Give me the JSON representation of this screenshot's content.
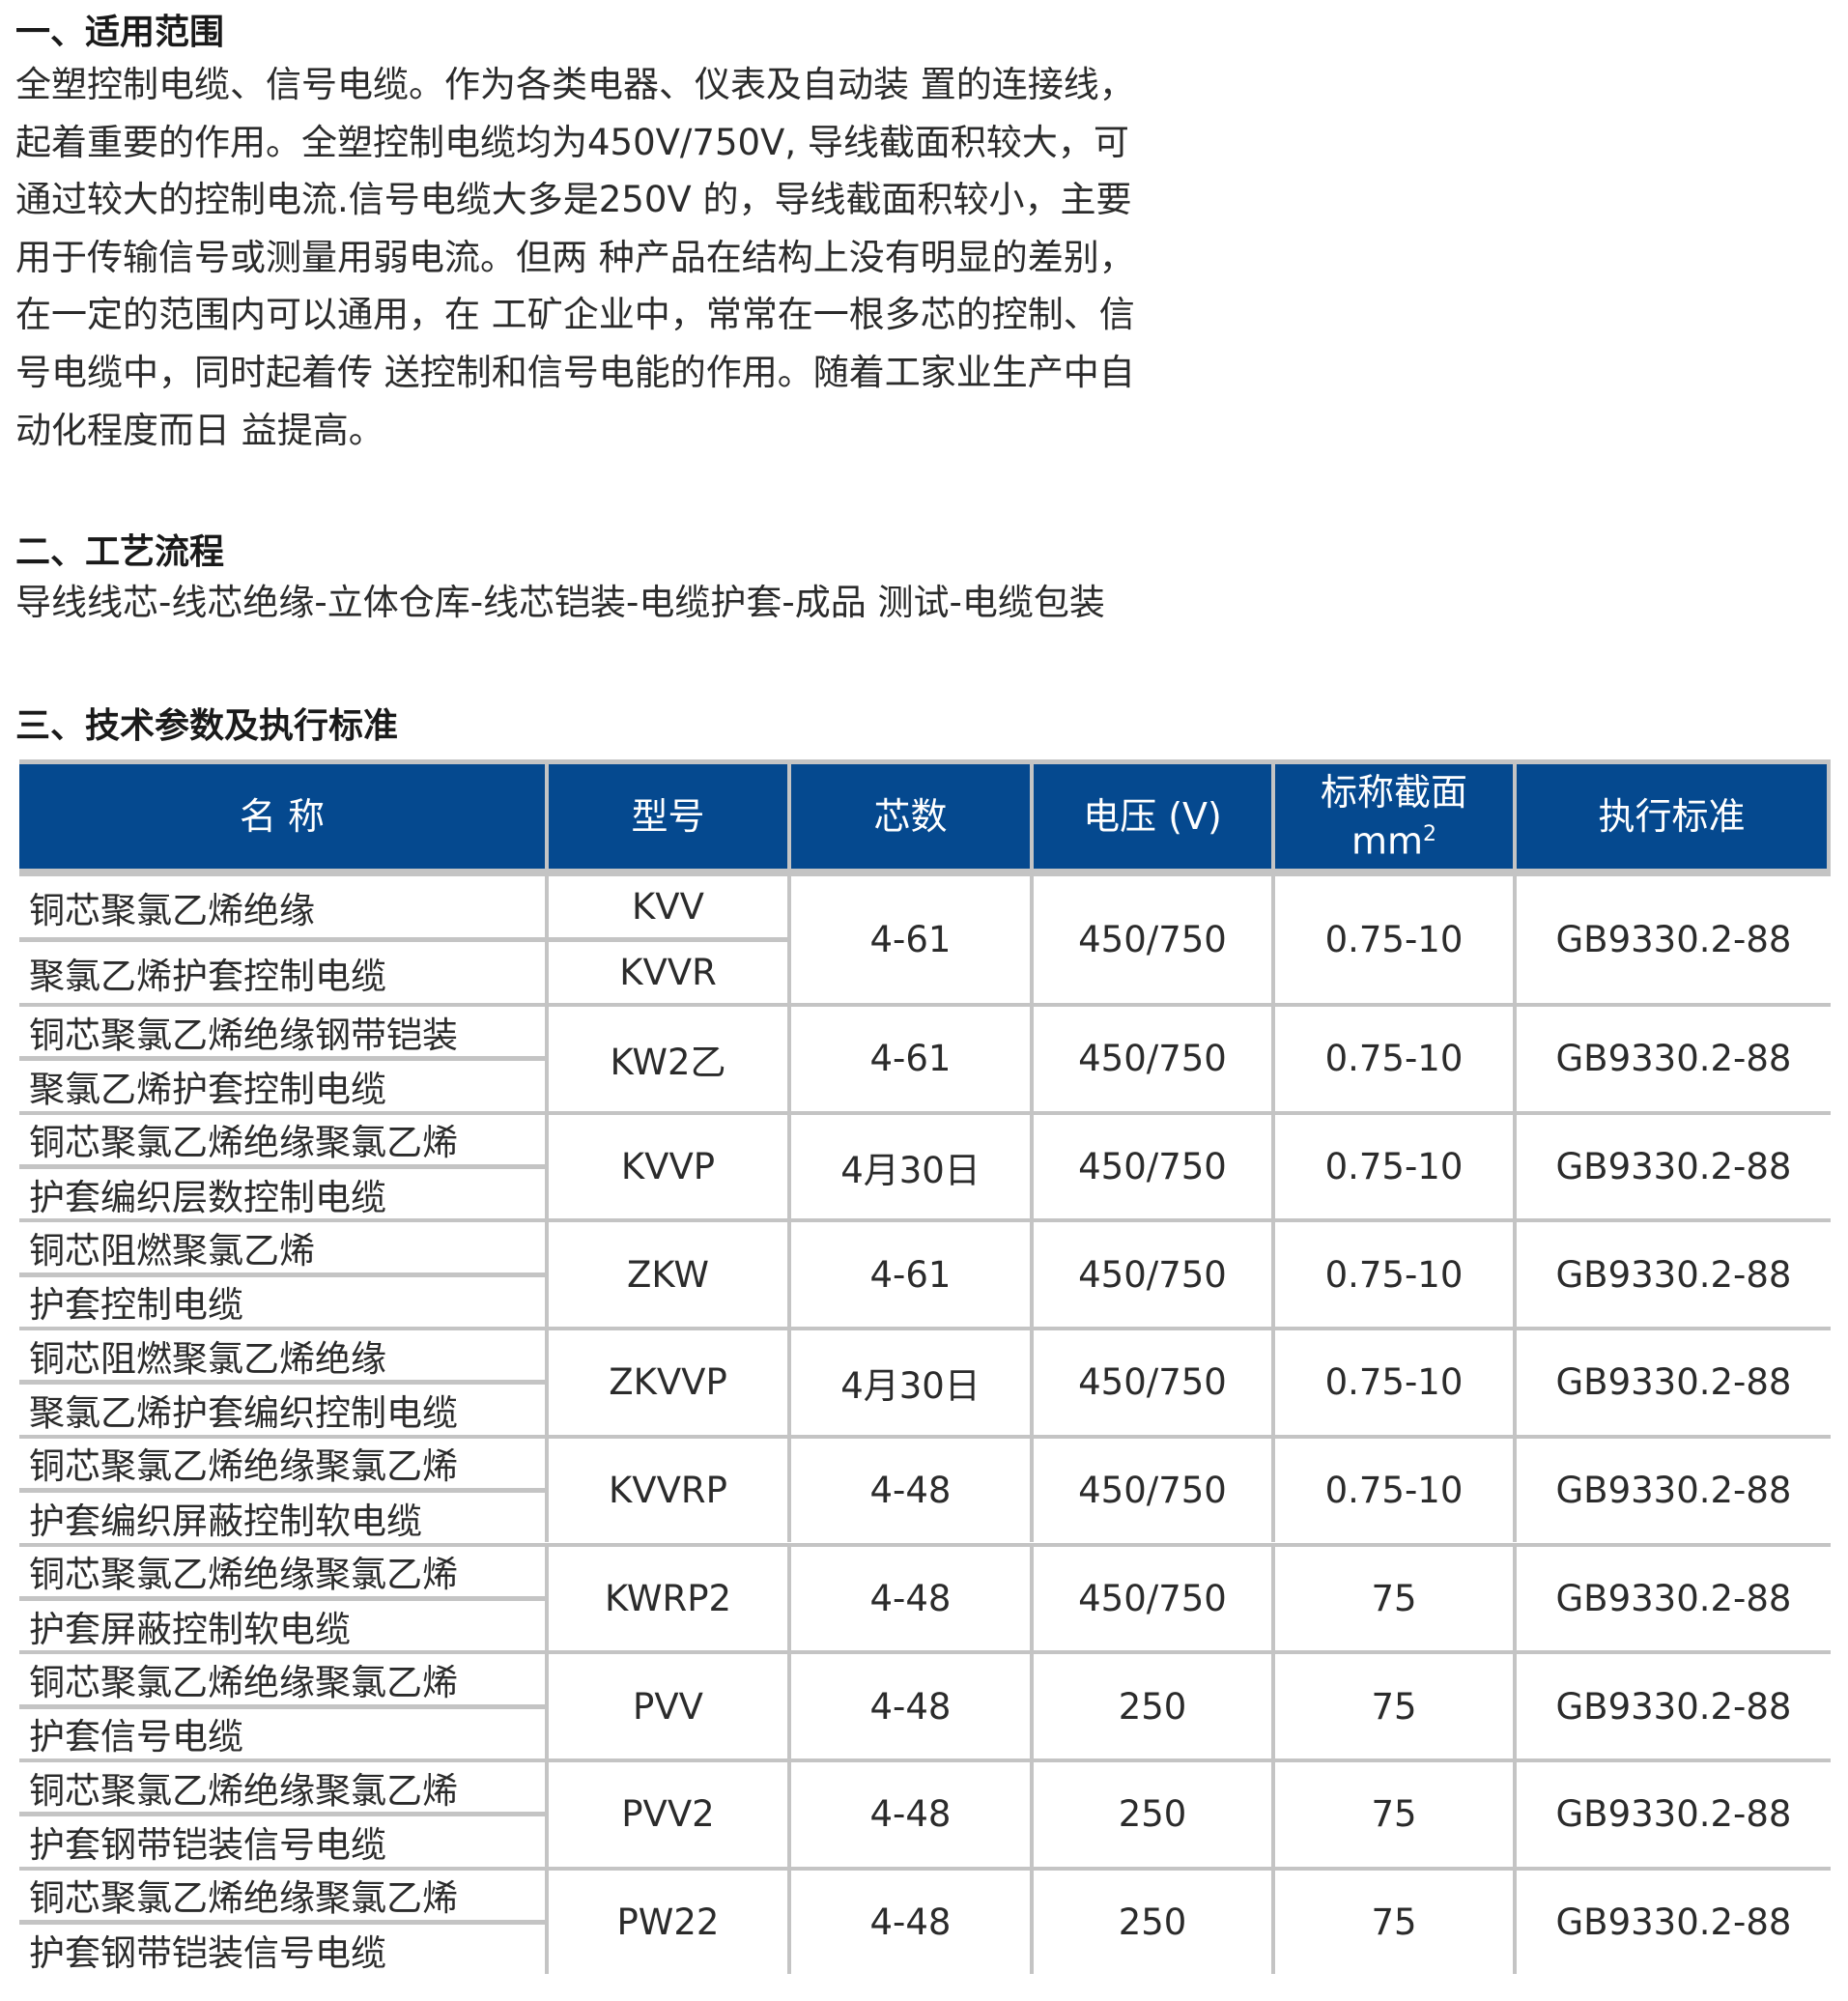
{
  "section1": {
    "title": "一、适用范围",
    "lines": [
      "全塑控制电缆、信号电缆。作为各类电器、仪表及自动装 置的连接线，",
      "起着重要的作用。全塑控制电缆均为450V/750V, 导线截面积较大，可",
      "通过较大的控制电流.信号电缆大多是250V 的，导线截面积较小，主要",
      "用于传输信号或测量用弱电流。但两 种产品在结构上没有明显的差别，",
      "在一定的范围内可以通用，在 工矿企业中，常常在一根多芯的控制、信",
      "号电缆中，同时起着传 送控制和信号电能的作用。随着工家业生产中自",
      "动化程度而日 益提高。"
    ]
  },
  "section2": {
    "title": "二、工艺流程",
    "text": "导线线芯-线芯绝缘-立体仓库-线芯铠装-电缆护套-成品 测试-电缆包装"
  },
  "section3": {
    "title": "三、技术参数及执行标准",
    "header_color": "#05498f",
    "headers": {
      "name": "名 称",
      "model": "型号",
      "cores": "芯数",
      "voltage": "电压 (V)",
      "section": "标称截面",
      "section_unit": "mm",
      "section_unit_sup": "2",
      "standard": "执行标准"
    },
    "rows": [
      {
        "name": [
          "铜芯聚氯乙烯绝缘",
          "聚氯乙烯护套控制电缆"
        ],
        "model": [
          "KVV",
          "KVVR"
        ],
        "cores": "4-61",
        "voltage": "450/750",
        "section": "0.75-10",
        "standard": "GB9330.2-88"
      },
      {
        "name": [
          "铜芯聚氯乙烯绝缘钢带铠装",
          "聚氯乙烯护套控制电缆"
        ],
        "model": [
          "KW2乙"
        ],
        "cores": "4-61",
        "voltage": "450/750",
        "section": "0.75-10",
        "standard": "GB9330.2-88"
      },
      {
        "name": [
          "铜芯聚氯乙烯绝缘聚氯乙烯",
          "护套编织层数控制电缆"
        ],
        "model": [
          "KVVP"
        ],
        "cores": "4月30日",
        "voltage": "450/750",
        "section": "0.75-10",
        "standard": "GB9330.2-88"
      },
      {
        "name": [
          "铜芯阻燃聚氯乙烯",
          "护套控制电缆"
        ],
        "model": [
          "ZKW"
        ],
        "cores": "4-61",
        "voltage": "450/750",
        "section": "0.75-10",
        "standard": "GB9330.2-88"
      },
      {
        "name": [
          "铜芯阻燃聚氯乙烯绝缘",
          "聚氯乙烯护套编织控制电缆"
        ],
        "model": [
          "ZKVVP"
        ],
        "cores": "4月30日",
        "voltage": "450/750",
        "section": "0.75-10",
        "standard": "GB9330.2-88"
      },
      {
        "name": [
          "铜芯聚氯乙烯绝缘聚氯乙烯",
          "护套编织屏蔽控制软电缆"
        ],
        "model": [
          "KVVRP"
        ],
        "cores": "4-48",
        "voltage": "450/750",
        "section": "0.75-10",
        "standard": "GB9330.2-88"
      },
      {
        "name": [
          "铜芯聚氯乙烯绝缘聚氯乙烯",
          "护套屏蔽控制软电缆"
        ],
        "model": [
          "KWRP2"
        ],
        "cores": "4-48",
        "voltage": "450/750",
        "section": "75",
        "standard": "GB9330.2-88"
      },
      {
        "name": [
          "铜芯聚氯乙烯绝缘聚氯乙烯",
          "护套信号电缆"
        ],
        "model": [
          "PVV"
        ],
        "cores": "4-48",
        "voltage": "250",
        "section": "75",
        "standard": "GB9330.2-88"
      },
      {
        "name": [
          "铜芯聚氯乙烯绝缘聚氯乙烯",
          "护套钢带铠装信号电缆"
        ],
        "model": [
          "PVV2"
        ],
        "cores": "4-48",
        "voltage": "250",
        "section": "75",
        "standard": "GB9330.2-88"
      },
      {
        "name": [
          "铜芯聚氯乙烯绝缘聚氯乙烯",
          "护套钢带铠装信号电缆"
        ],
        "model": [
          "PW22"
        ],
        "cores": "4-48",
        "voltage": "250",
        "section": "75",
        "standard": "GB9330.2-88"
      }
    ]
  }
}
